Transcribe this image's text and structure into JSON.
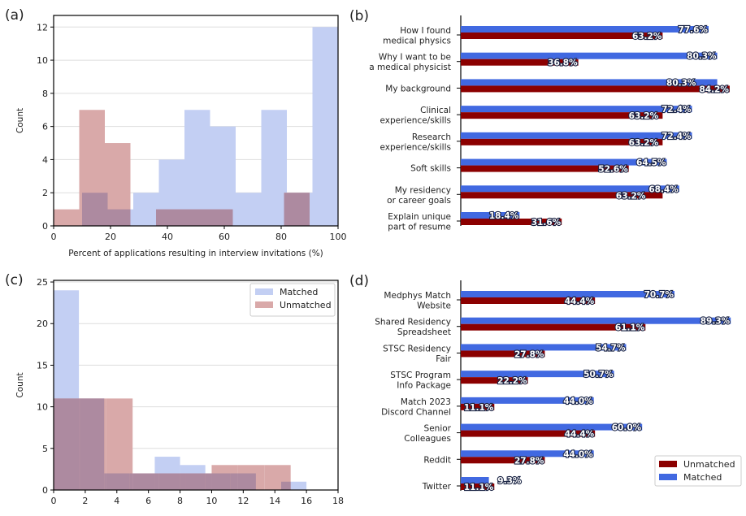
{
  "colors": {
    "matched_hist": "#c3cff3",
    "unmatched_hist": "#d9a9a9",
    "overlap_hist": "#ad8aa0",
    "matched_bar": "#4169e1",
    "unmatched_bar": "#8b0000"
  },
  "chart_data": [
    {
      "panel": "(a)",
      "type": "histogram",
      "xlabel": "Percent of applications resulting in interview invitations (%)",
      "ylabel": "Count",
      "xlim": [
        0,
        100
      ],
      "ylim": [
        0,
        12.7
      ],
      "xticks": [
        0,
        20,
        40,
        60,
        80,
        100
      ],
      "yticks": [
        0,
        2,
        4,
        6,
        8,
        10,
        12
      ],
      "grid": "horizontal",
      "series": [
        {
          "name": "Matched",
          "bins": [
            [
              10,
              19,
              2
            ],
            [
              19,
              28,
              1
            ],
            [
              28,
              37,
              2
            ],
            [
              37,
              46,
              4
            ],
            [
              46,
              55,
              7
            ],
            [
              55,
              64,
              6
            ],
            [
              64,
              73,
              2
            ],
            [
              73,
              82,
              7
            ],
            [
              82,
              91,
              2
            ],
            [
              91,
              100,
              12
            ]
          ]
        },
        {
          "name": "Unmatched",
          "bins": [
            [
              0,
              9,
              1
            ],
            [
              9,
              18,
              7
            ],
            [
              18,
              27,
              5
            ],
            [
              36,
              45,
              1
            ],
            [
              45,
              54,
              1
            ],
            [
              54,
              63,
              1
            ],
            [
              81,
              90,
              2
            ]
          ]
        }
      ]
    },
    {
      "panel": "(b)",
      "type": "bar",
      "orientation": "horizontal",
      "categories": [
        [
          "How I found",
          "medical physics"
        ],
        [
          "Why I want to be",
          "a medical physicist"
        ],
        [
          "My background"
        ],
        [
          "Clinical",
          "experience/skills"
        ],
        [
          "Research",
          "experience/skills"
        ],
        [
          "Soft skills"
        ],
        [
          "My residency",
          "or career goals"
        ],
        [
          "Explain unique",
          "part of resume"
        ]
      ],
      "series": [
        {
          "name": "Matched",
          "values": [
            77.6,
            80.3,
            80.3,
            72.4,
            72.4,
            64.5,
            68.4,
            18.4
          ],
          "labels": [
            "77.6%",
            "80.3%",
            "80.3%",
            "72.4%",
            "72.4%",
            "64.5%",
            "68.4%",
            "18.4%"
          ]
        },
        {
          "name": "Unmatched",
          "values": [
            63.2,
            36.8,
            84.2,
            63.2,
            63.2,
            52.6,
            63.2,
            31.6
          ],
          "labels": [
            "63.2%",
            "36.8%",
            "84.2%",
            "63.2%",
            "63.2%",
            "52.6%",
            "63.2%",
            "31.6%"
          ]
        }
      ],
      "xlim": [
        0,
        100
      ]
    },
    {
      "panel": "(c)",
      "type": "histogram",
      "xlabel": "",
      "ylabel": "Count",
      "xlim": [
        0,
        18
      ],
      "ylim": [
        0,
        25.2
      ],
      "xticks": [
        0,
        2,
        4,
        6,
        8,
        10,
        12,
        14,
        16,
        18
      ],
      "yticks": [
        0,
        5,
        10,
        15,
        20,
        25
      ],
      "grid": "horizontal",
      "legend": {
        "placement": "upper right",
        "entries": [
          "Matched",
          "Unmatched"
        ]
      },
      "series": [
        {
          "name": "Matched",
          "bins": [
            [
              0,
              1.6,
              24
            ],
            [
              1.6,
              3.2,
              11
            ],
            [
              3.2,
              4.8,
              2
            ],
            [
              4.8,
              6.4,
              2
            ],
            [
              6.4,
              8,
              4
            ],
            [
              8,
              9.6,
              3
            ],
            [
              9.6,
              11.2,
              2
            ],
            [
              11.2,
              12.8,
              2
            ],
            [
              14.4,
              16,
              1
            ]
          ]
        },
        {
          "name": "Unmatched",
          "bins": [
            [
              0,
              1.667,
              11
            ],
            [
              1.667,
              3.333,
              11
            ],
            [
              3.333,
              5,
              11
            ],
            [
              5,
              6.667,
              2
            ],
            [
              6.667,
              8.333,
              2
            ],
            [
              8.333,
              10,
              2
            ],
            [
              10,
              11.667,
              3
            ],
            [
              11.667,
              13.333,
              3
            ],
            [
              13.333,
              15,
              3
            ]
          ]
        }
      ]
    },
    {
      "panel": "(d)",
      "type": "bar",
      "orientation": "horizontal",
      "categories": [
        [
          "Medphys Match",
          "Website"
        ],
        [
          "Shared Residency",
          "Spreadsheet"
        ],
        [
          "STSC Residency",
          "Fair"
        ],
        [
          "STSC Program",
          "Info Package"
        ],
        [
          "Match 2023",
          "Discord Channel"
        ],
        [
          "Senior",
          "Colleagues"
        ],
        [
          "Reddit"
        ],
        [
          "Twitter"
        ]
      ],
      "series": [
        {
          "name": "Matched",
          "values": [
            70.7,
            89.3,
            54.7,
            50.7,
            44.0,
            60.0,
            44.0,
            9.3
          ],
          "labels": [
            "70.7%",
            "89.3%",
            "54.7%",
            "50.7%",
            "44.0%",
            "60.0%",
            "44.0%",
            "9.3%"
          ]
        },
        {
          "name": "Unmatched",
          "values": [
            44.4,
            61.1,
            27.8,
            22.2,
            11.1,
            44.4,
            27.8,
            11.1
          ],
          "labels": [
            "44.4%",
            "61.1%",
            "27.8%",
            "22.2%",
            "11.1%",
            "44.4%",
            "27.8%",
            "11.1%"
          ]
        }
      ],
      "legend": {
        "placement": "lower right",
        "entries": [
          "Unmatched",
          "Matched"
        ]
      }
    }
  ]
}
